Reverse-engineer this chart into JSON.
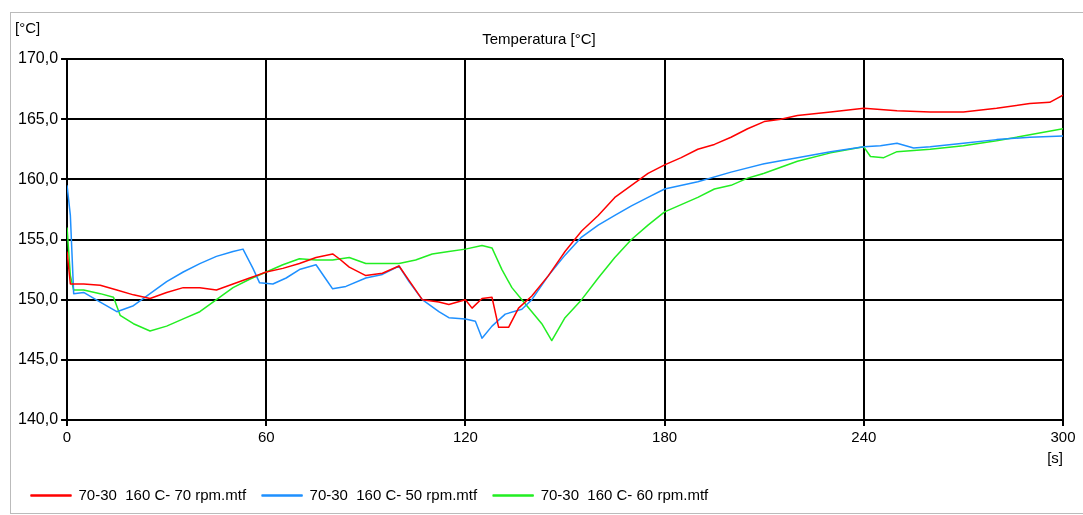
{
  "chart_data": {
    "type": "line",
    "title": "Temperatura [°C]",
    "xlabel": "[s]",
    "ylabel": "[°C]",
    "xlim": [
      0,
      300
    ],
    "xticks": [
      0,
      60,
      120,
      180,
      240,
      300
    ],
    "ylim": [
      140,
      170
    ],
    "yticks": [
      {
        "value": 140,
        "label": "140,0"
      },
      {
        "value": 145,
        "label": "145,0"
      },
      {
        "value": 150,
        "label": "150,0"
      },
      {
        "value": 155,
        "label": "155,0"
      },
      {
        "value": 160,
        "label": "160,0"
      },
      {
        "value": 165,
        "label": "165,0"
      },
      {
        "value": 170,
        "label": "170,0"
      }
    ],
    "grid": true,
    "legend": "bottom",
    "marker": "none",
    "line_style": "solid",
    "series": [
      {
        "name": "70-30  160 C- 70 rpm.mtf",
        "color": "#ff0000",
        "x": [
          0,
          1,
          5,
          10,
          15,
          20,
          25,
          30,
          35,
          40,
          45,
          50,
          55,
          60,
          65,
          70,
          75,
          80,
          82,
          85,
          90,
          95,
          100,
          103,
          107,
          112,
          115,
          120,
          122,
          125,
          128,
          130,
          133,
          136,
          140,
          145,
          150,
          155,
          160,
          165,
          170,
          175,
          180,
          185,
          190,
          195,
          200,
          205,
          210,
          215,
          220,
          230,
          240,
          250,
          260,
          270,
          280,
          290,
          296,
          300
        ],
        "values": [
          154,
          151.3,
          151.3,
          151.2,
          150.8,
          150.4,
          150.1,
          150.6,
          151,
          151,
          150.8,
          151.3,
          151.8,
          152.3,
          152.6,
          153,
          153.5,
          153.8,
          153.4,
          152.7,
          152,
          152.2,
          152.8,
          151.6,
          150,
          149.8,
          149.6,
          150,
          149.3,
          150.1,
          150.2,
          147.7,
          147.7,
          149.3,
          150.3,
          152,
          154,
          155.7,
          157,
          158.5,
          159.5,
          160.5,
          161.2,
          161.8,
          162.5,
          162.9,
          163.5,
          164.2,
          164.8,
          165,
          165.3,
          165.6,
          165.9,
          165.7,
          165.6,
          165.6,
          165.9,
          166.3,
          166.4,
          167
        ]
      },
      {
        "name": "70-30  160 C- 50 rpm.mtf",
        "color": "#1e90ff",
        "x": [
          0,
          1,
          2,
          5,
          10,
          15,
          20,
          25,
          30,
          35,
          40,
          45,
          50,
          53,
          56,
          58,
          62,
          66,
          70,
          75,
          78,
          80,
          84,
          90,
          95,
          100,
          103,
          107,
          112,
          115,
          120,
          123,
          125,
          128,
          132,
          137,
          140,
          145,
          150,
          155,
          160,
          165,
          170,
          175,
          180,
          190,
          200,
          210,
          220,
          230,
          240,
          245,
          250,
          255,
          260,
          270,
          280,
          290,
          300
        ],
        "values": [
          159.5,
          157,
          150.5,
          150.6,
          149.8,
          149,
          149.5,
          150.5,
          151.5,
          152.3,
          153,
          153.6,
          154,
          154.2,
          152.6,
          151.4,
          151.3,
          151.8,
          152.5,
          152.9,
          151.7,
          150.9,
          151.1,
          151.8,
          152.1,
          152.8,
          151.5,
          150,
          149,
          148.5,
          148.4,
          148.2,
          146.8,
          147.8,
          148.8,
          149.2,
          150,
          152,
          153.7,
          155.2,
          156.2,
          157,
          157.8,
          158.5,
          159.2,
          159.8,
          160.6,
          161.3,
          161.8,
          162.3,
          162.7,
          162.8,
          163,
          162.6,
          162.7,
          163,
          163.3,
          163.5,
          163.6
        ]
      },
      {
        "name": "70-30  160 C- 60 rpm.mtf",
        "color": "#22ee22",
        "x": [
          0,
          1,
          2,
          5,
          10,
          14,
          16,
          20,
          25,
          30,
          35,
          40,
          45,
          50,
          55,
          60,
          65,
          70,
          75,
          80,
          85,
          90,
          95,
          100,
          105,
          110,
          115,
          120,
          125,
          128,
          131,
          134,
          137,
          140,
          143,
          146,
          150,
          155,
          160,
          165,
          170,
          175,
          180,
          185,
          190,
          195,
          200,
          205,
          210,
          215,
          220,
          230,
          240,
          242,
          246,
          250,
          260,
          270,
          280,
          290,
          300
        ],
        "values": [
          156,
          152,
          150.8,
          150.8,
          150.5,
          150.2,
          148.7,
          148,
          147.4,
          147.8,
          148.4,
          149,
          150,
          151,
          151.7,
          152.3,
          152.9,
          153.4,
          153.3,
          153.3,
          153.5,
          153,
          153,
          153,
          153.3,
          153.8,
          154,
          154.2,
          154.5,
          154.3,
          152.5,
          151,
          150,
          149,
          148,
          146.6,
          148.5,
          150,
          151.8,
          153.5,
          155,
          156.2,
          157.3,
          157.9,
          158.5,
          159.2,
          159.5,
          160.1,
          160.5,
          161,
          161.5,
          162.2,
          162.7,
          161.9,
          161.8,
          162.3,
          162.5,
          162.8,
          163.2,
          163.7,
          164.2
        ]
      }
    ]
  }
}
